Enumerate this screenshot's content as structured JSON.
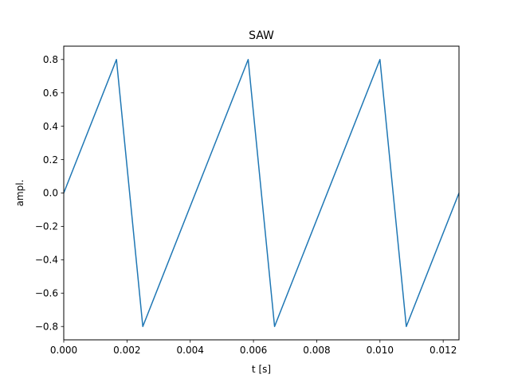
{
  "chart_data": {
    "type": "line",
    "title": "SAW",
    "xlabel": "t [s]",
    "ylabel": "ampl.",
    "xlim": [
      0,
      0.0125
    ],
    "ylim": [
      -0.88,
      0.88
    ],
    "grid": false,
    "x_ticks": [
      0,
      0.002,
      0.004,
      0.006,
      0.008,
      0.01,
      0.012
    ],
    "x_tick_labels": [
      "0.000",
      "0.002",
      "0.004",
      "0.006",
      "0.008",
      "0.010",
      "0.012"
    ],
    "y_ticks": [
      -0.8,
      -0.6,
      -0.4,
      -0.2,
      0,
      0.2,
      0.4,
      0.6,
      0.8
    ],
    "y_tick_labels": [
      "−0.8",
      "−0.6",
      "−0.4",
      "−0.2",
      "0.0",
      "0.2",
      "0.4",
      "0.6",
      "0.8"
    ],
    "series": [
      {
        "color": "#1f77b4",
        "x": [
          0,
          0.001667,
          0.0025,
          0.005833,
          0.006667,
          0.01,
          0.010833,
          0.0125
        ],
        "y": [
          0,
          0.8,
          -0.8,
          0.8,
          -0.8,
          0.8,
          -0.8,
          0
        ]
      }
    ]
  }
}
